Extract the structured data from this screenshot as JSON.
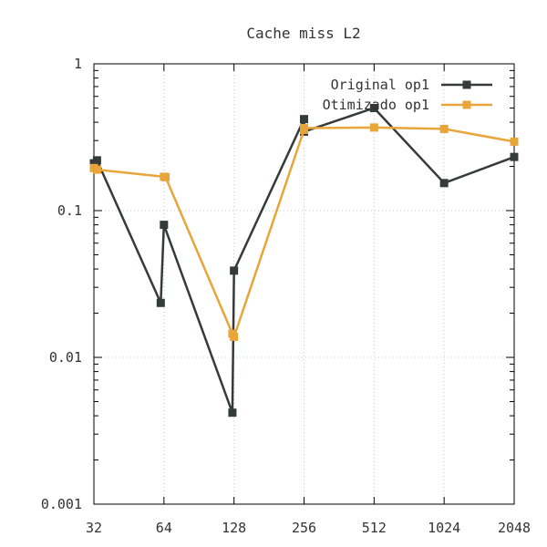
{
  "chart_data": {
    "type": "line",
    "title": "Cache miss L2",
    "xlabel": "",
    "ylabel": "",
    "x_scale": "log2",
    "y_scale": "log10",
    "xlim": [
      32,
      2048
    ],
    "ylim": [
      0.001,
      1
    ],
    "x_ticks": [
      32,
      64,
      128,
      256,
      512,
      1024,
      2048
    ],
    "x_tick_labels": [
      "32",
      "64",
      "128",
      "256",
      "512",
      "1024",
      "2048"
    ],
    "y_ticks": [
      0.001,
      0.01,
      0.1,
      1
    ],
    "y_tick_labels": [
      "0.001",
      "0.01",
      "0.1",
      "1"
    ],
    "grid": true,
    "legend_position": "top-right",
    "series": [
      {
        "name": "Original op1",
        "color": "#343b38",
        "marker": "square",
        "points": [
          [
            32,
            0.21
          ],
          [
            33,
            0.22
          ],
          [
            62,
            0.0235
          ],
          [
            64,
            0.08
          ],
          [
            126,
            0.0042
          ],
          [
            128,
            0.039
          ],
          [
            256,
            0.42
          ],
          [
            256,
            0.345
          ],
          [
            512,
            0.5
          ],
          [
            1024,
            0.154
          ],
          [
            2048,
            0.232
          ]
        ]
      },
      {
        "name": "Otimizado op1",
        "color": "#e8a53a",
        "marker": "square",
        "points": [
          [
            32,
            0.195
          ],
          [
            33,
            0.19
          ],
          [
            64,
            0.17
          ],
          [
            65,
            0.169
          ],
          [
            126,
            0.0145
          ],
          [
            128,
            0.0138
          ],
          [
            256,
            0.355
          ],
          [
            256,
            0.365
          ],
          [
            512,
            0.368
          ],
          [
            1024,
            0.36
          ],
          [
            2048,
            0.295
          ]
        ]
      }
    ]
  }
}
